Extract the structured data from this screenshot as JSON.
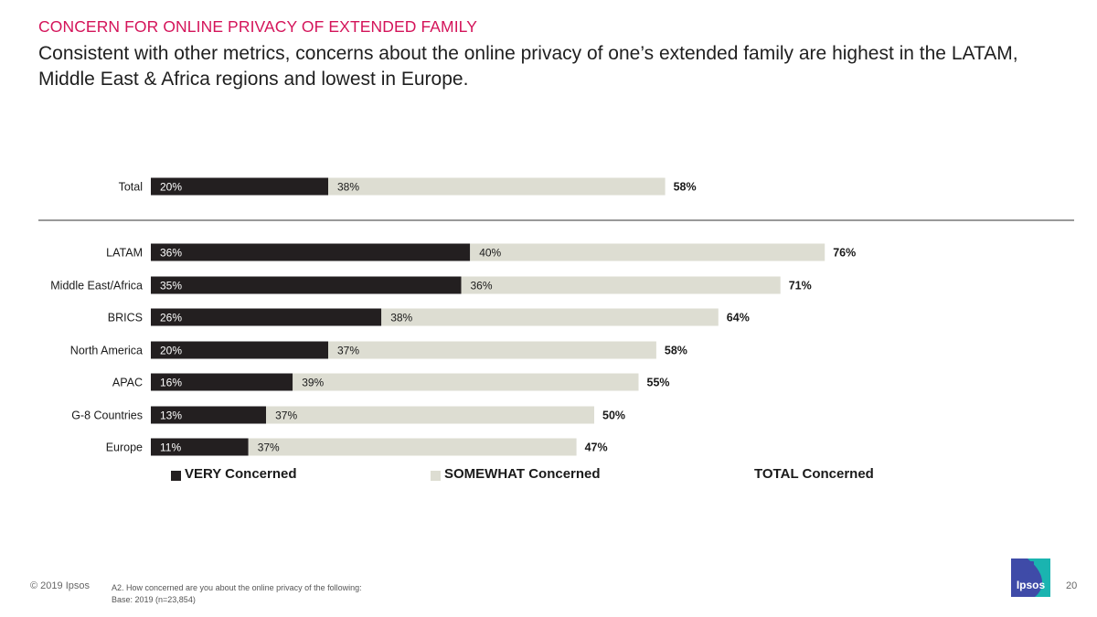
{
  "slide": {
    "kicker": "CONCERN FOR ONLINE PRIVACY OF EXTENDED FAMILY",
    "headline": "Consistent with other metrics, concerns about the online privacy of one’s extended family are highest in the LATAM, Middle East & Africa regions and lowest in Europe."
  },
  "chart_data": {
    "type": "bar",
    "orientation": "horizontal",
    "stacked": true,
    "unit": "%",
    "categories": [
      "Total",
      "LATAM",
      "Middle East/Africa",
      "BRICS",
      "North America",
      "APAC",
      "G-8 Countries",
      "Europe"
    ],
    "series": [
      {
        "name": "VERY Concerned",
        "color": "#231f20",
        "values": [
          20,
          36,
          35,
          26,
          20,
          16,
          13,
          11
        ]
      },
      {
        "name": "SOMEWHAT Concerned",
        "color": "#ddddd2",
        "values": [
          38,
          40,
          36,
          38,
          37,
          39,
          37,
          37
        ]
      },
      {
        "name": "TOTAL Concerned",
        "values": [
          58,
          76,
          71,
          64,
          58,
          55,
          50,
          47
        ]
      }
    ],
    "separator_after": "Total",
    "legend": {
      "position": "bottom",
      "items": [
        "VERY Concerned",
        "SOMEWHAT Concerned",
        "TOTAL Concerned"
      ]
    }
  },
  "footer": {
    "copyright": "© 2019 Ipsos",
    "question": "A2. How concerned are you about the online privacy of the following:",
    "base": "Base: 2019 (n=23,854)",
    "logo_text": "Ipsos",
    "page_number": "20"
  },
  "colors": {
    "accent": "#d4145a",
    "very": "#231f20",
    "somewhat": "#ddddd2",
    "logo_blue": "#3f4ba8",
    "logo_teal": "#1ab4b0"
  }
}
